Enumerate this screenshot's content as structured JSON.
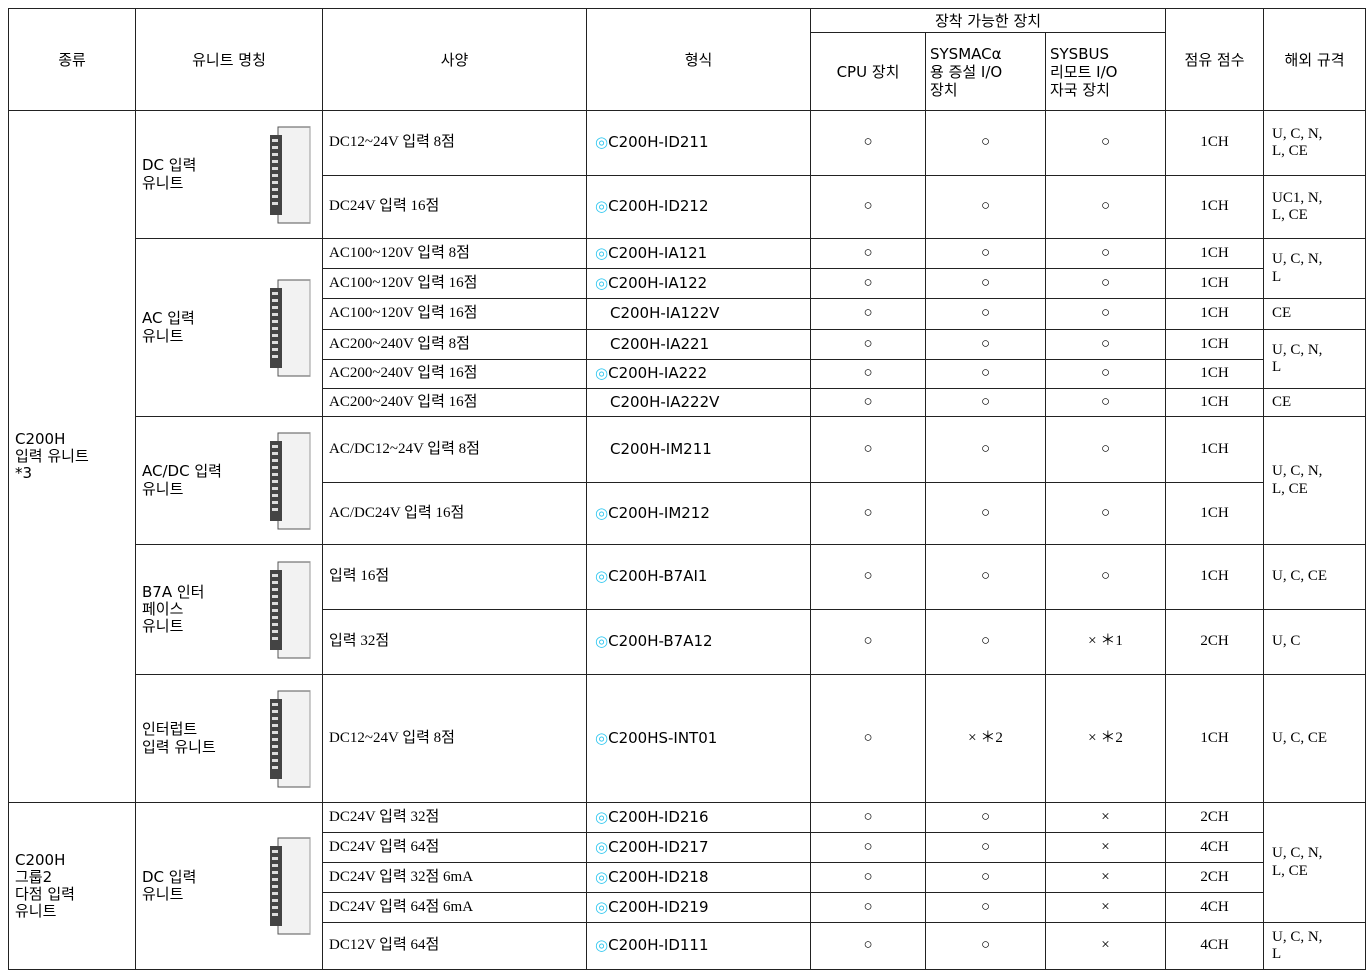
{
  "header": {
    "type": "종류",
    "unit_name": "유니트 명칭",
    "spec": "사양",
    "model": "형식",
    "mountable": "장착 가능한 장치",
    "cpu": "CPU 장치",
    "sysmac": "SYSMACα\n용 증설 I/O\n장치",
    "sysbus": "SYSBUS\n리모트 I/O\n자국 장치",
    "points": "점유 점수",
    "standards": "해외 규격"
  },
  "groups": [
    {
      "type": "C200H\n입력 유니트\n*3",
      "units": [
        {
          "name": "DC 입력\n유니트",
          "rows": [
            {
              "spec": "DC12~24V  입력 8점",
              "symbol": "◎",
              "model": "C200H-ID211",
              "cpu": "○",
              "sysmac": "○",
              "sysbus": "○",
              "points": "1CH",
              "standards": "U, C, N,\nL, CE"
            },
            {
              "spec": "DC24V  입력 16점",
              "symbol": "◎",
              "model": "C200H-ID212",
              "cpu": "○",
              "sysmac": "○",
              "sysbus": "○",
              "points": "1CH",
              "standards": "UC1, N,\nL, CE"
            }
          ]
        },
        {
          "name": "AC 입력\n유니트",
          "rows": [
            {
              "spec": "AC100~120V  입력 8점",
              "symbol": "◎",
              "model": "C200H-IA121",
              "cpu": "○",
              "sysmac": "○",
              "sysbus": "○",
              "points": "1CH",
              "standards": "U, C, N,\nL"
            },
            {
              "spec": "AC100~120V  입력 16점",
              "symbol": "◎",
              "model": "C200H-IA122",
              "cpu": "○",
              "sysmac": "○",
              "sysbus": "○",
              "points": "1CH",
              "standards": null
            },
            {
              "spec": "AC100~120V  입력 16점",
              "symbol": null,
              "model": "C200H-IA122V",
              "cpu": "○",
              "sysmac": "○",
              "sysbus": "○",
              "points": "1CH",
              "standards": "CE"
            },
            {
              "spec": "AC200~240V  입력 8점",
              "symbol": null,
              "model": "C200H-IA221",
              "cpu": "○",
              "sysmac": "○",
              "sysbus": "○",
              "points": "1CH",
              "standards": "U, C, N,\nL"
            },
            {
              "spec": "AC200~240V  입력 16점",
              "symbol": "◎",
              "model": "C200H-IA222",
              "cpu": "○",
              "sysmac": "○",
              "sysbus": "○",
              "points": "1CH",
              "standards": null
            },
            {
              "spec": "AC200~240V  입력 16점",
              "symbol": null,
              "model": "C200H-IA222V",
              "cpu": "○",
              "sysmac": "○",
              "sysbus": "○",
              "points": "1CH",
              "standards": "CE"
            }
          ]
        },
        {
          "name": "AC/DC 입력\n유니트",
          "rows": [
            {
              "spec": "AC/DC12~24V 입력 8점",
              "symbol": null,
              "model": "C200H-IM211",
              "cpu": "○",
              "sysmac": "○",
              "sysbus": "○",
              "points": "1CH",
              "standards": "U, C, N,\nL, CE"
            },
            {
              "spec": "AC/DC24V  입력 16점",
              "symbol": "◎",
              "model": "C200H-IM212",
              "cpu": "○",
              "sysmac": "○",
              "sysbus": "○",
              "points": "1CH",
              "standards": null
            }
          ]
        },
        {
          "name": "B7A 인터\n페이스\n유니트",
          "rows": [
            {
              "spec": "입력 16점",
              "symbol": "◎",
              "model": "C200H-B7AI1",
              "cpu": "○",
              "sysmac": "○",
              "sysbus": "○",
              "points": "1CH",
              "standards": "U, C, CE"
            },
            {
              "spec": "입력 32점",
              "symbol": "◎",
              "model": "C200H-B7A12",
              "cpu": "○",
              "sysmac": "○",
              "sysbus": "× ＊1",
              "points": "2CH",
              "standards": "U, C"
            }
          ]
        },
        {
          "name": "인터럽트\n입력 유니트",
          "rows": [
            {
              "spec": "DC12~24V  입력 8점",
              "symbol": "◎",
              "model": "C200HS-INT01",
              "cpu": "○",
              "sysmac": "× ＊2",
              "sysbus": "× ＊2",
              "points": "1CH",
              "standards": "U, C, CE"
            }
          ]
        }
      ]
    },
    {
      "type": "C200H\n그룹2\n다점 입력\n유니트",
      "units": [
        {
          "name": "DC 입력\n유니트",
          "rows": [
            {
              "spec": "DC24V  입력 32점",
              "symbol": "◎",
              "model": "C200H-ID216",
              "cpu": "○",
              "sysmac": "○",
              "sysbus": "×",
              "points": "2CH",
              "standards": "U, C, N,\nL, CE"
            },
            {
              "spec": "DC24V  입력 64점",
              "symbol": "◎",
              "model": "C200H-ID217",
              "cpu": "○",
              "sysmac": "○",
              "sysbus": "×",
              "points": "4CH",
              "standards": null
            },
            {
              "spec": "DC24V  입력 32점  6mA",
              "symbol": "◎",
              "model": "C200H-ID218",
              "cpu": "○",
              "sysmac": "○",
              "sysbus": "×",
              "points": "2CH",
              "standards": null
            },
            {
              "spec": "DC24V  입력 64점  6mA",
              "symbol": "◎",
              "model": "C200H-ID219",
              "cpu": "○",
              "sysmac": "○",
              "sysbus": "×",
              "points": "4CH",
              "standards": null
            },
            {
              "spec": "DC12V  입력 64점",
              "symbol": "◎",
              "model": "C200H-ID111",
              "cpu": "○",
              "sysmac": "○",
              "sysbus": "×",
              "points": "4CH",
              "standards": "U, C, N,\nL"
            }
          ]
        }
      ]
    }
  ]
}
